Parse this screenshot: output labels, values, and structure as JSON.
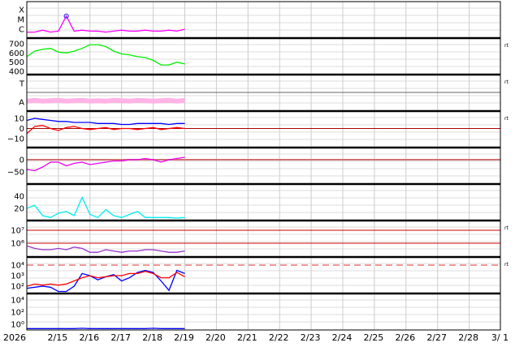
{
  "chart_data": {
    "type": "line",
    "year_label": "2026",
    "x_tick_labels": [
      "2/15",
      "2/16",
      "2/17",
      "2/18",
      "2/19",
      "2/20",
      "2/21",
      "2/22",
      "2/23",
      "2/24",
      "2/25",
      "2/26",
      "2/27",
      "2/28",
      "3/ 1"
    ],
    "x_range": [
      "2026-02-14",
      "2026-03-01 23:00"
    ],
    "grid": true,
    "times": [
      "2/14 00",
      "2/14 06",
      "2/14 12",
      "2/14 18",
      "2/15 00",
      "2/15 06",
      "2/15 12",
      "2/15 18",
      "2/16 00",
      "2/16 06",
      "2/16 12",
      "2/16 18",
      "2/17 00",
      "2/17 06",
      "2/17 12",
      "2/17 18",
      "2/18 00",
      "2/18 06",
      "2/18 12",
      "2/18 18",
      "2/19 00"
    ],
    "panels": [
      {
        "id": "xray",
        "scale": "log",
        "ticks": [
          {
            "label": "X",
            "value": -4
          },
          {
            "label": "M",
            "value": -5
          },
          {
            "label": "C",
            "value": -6
          }
        ],
        "right_label": "",
        "series": [
          {
            "color": "#ff00ff",
            "values": [
              -6.3,
              -6.3,
              -6.1,
              -6.3,
              -6.2,
              -4.65,
              -6.2,
              -6.1,
              -6.2,
              -6.2,
              -6.3,
              -6.2,
              -6.1,
              -6.2,
              -6.2,
              -6.1,
              -6.2,
              -6.2,
              -6.1,
              -6.2,
              -6.0
            ]
          }
        ],
        "marker": {
          "time_index": 5,
          "color": "#3333ff"
        }
      },
      {
        "id": "solar-wind-speed",
        "ticks": [
          {
            "label": "700",
            "value": 700
          },
          {
            "label": "600",
            "value": 600
          },
          {
            "label": "500",
            "value": 500
          },
          {
            "label": "400",
            "value": 400
          }
        ],
        "right_label": "rt",
        "series": [
          {
            "color": "#00ee00",
            "values": [
              560,
              620,
              640,
              650,
              610,
              600,
              620,
              650,
              690,
              690,
              670,
              620,
              590,
              580,
              560,
              550,
              520,
              470,
              470,
              500,
              480
            ]
          }
        ]
      },
      {
        "id": "imf-polarity",
        "ticks": [
          {
            "label": "T",
            "value": 1
          },
          {
            "label": "A",
            "value": -1
          }
        ],
        "right_label": "rt",
        "series": [
          {
            "color": "#ffb3e6",
            "values": [
              -0.9,
              -0.8,
              -0.9,
              -0.85,
              -0.8,
              -0.9,
              -0.85,
              -0.8,
              -0.9,
              -0.85,
              -0.9,
              -0.8,
              -0.85,
              -0.9,
              -0.8,
              -0.85,
              -0.9,
              -0.85,
              -0.8,
              -0.9,
              -0.8
            ]
          }
        ]
      },
      {
        "id": "imf-bz-bt",
        "ticks": [
          {
            "label": "10",
            "value": 10
          },
          {
            "label": "0",
            "value": 0
          },
          {
            "label": "−10",
            "value": -10
          }
        ],
        "right_label": "rt",
        "ref_lines": [
          {
            "value": 0,
            "color": "#aa0000"
          }
        ],
        "series": [
          {
            "color": "#0000ff",
            "values": [
              8,
              10,
              9,
              8,
              7,
              7,
              6,
              6,
              6,
              5,
              5,
              5,
              4,
              4,
              5,
              5,
              5,
              5,
              4,
              5,
              5
            ]
          },
          {
            "color": "#ff0000",
            "values": [
              -5,
              2,
              3,
              0,
              -2,
              1,
              2,
              0,
              -1,
              0,
              1,
              -1,
              0,
              0,
              -1,
              0,
              1,
              -1,
              0,
              1,
              0
            ]
          }
        ]
      },
      {
        "id": "dst",
        "ticks": [
          {
            "label": "0",
            "value": 0
          },
          {
            "label": "−50",
            "value": -50
          }
        ],
        "right_label": "",
        "ref_lines": [
          {
            "value": 0,
            "color": "#d07070"
          }
        ],
        "series": [
          {
            "color": "#ee00ee",
            "values": [
              -40,
              -45,
              -30,
              -10,
              -10,
              -25,
              -15,
              -10,
              -20,
              -15,
              -10,
              -5,
              -5,
              0,
              0,
              5,
              0,
              -10,
              0,
              5,
              10
            ]
          }
        ]
      },
      {
        "id": "density",
        "ticks": [
          {
            "label": "40",
            "value": 40
          },
          {
            "label": "20",
            "value": 20
          }
        ],
        "right_label": "",
        "series": [
          {
            "color": "#00eeee",
            "values": [
              20,
              25,
              8,
              5,
              12,
              15,
              8,
              38,
              10,
              5,
              18,
              8,
              5,
              10,
              15,
              5,
              5,
              5,
              5,
              4,
              5
            ]
          }
        ]
      },
      {
        "id": "electron-flux",
        "scale": "log",
        "ticks": [
          {
            "label": "10⁷",
            "value": 7
          },
          {
            "label": "10⁶",
            "value": 6
          }
        ],
        "right_label": "rt",
        "ref_lines": [
          {
            "value": 7,
            "color": "#cc0000"
          },
          {
            "value": 6,
            "color": "#cc0000"
          }
        ],
        "series": [
          {
            "color": "#9933cc",
            "values": [
              5.8,
              5.6,
              5.5,
              5.5,
              5.6,
              5.5,
              5.7,
              5.6,
              5.3,
              5.3,
              5.5,
              5.4,
              5.3,
              5.4,
              5.4,
              5.5,
              5.5,
              5.4,
              5.3,
              5.3,
              5.4
            ]
          }
        ]
      },
      {
        "id": "proton-flux",
        "scale": "log",
        "ticks": [
          {
            "label": "10⁴",
            "value": 4
          },
          {
            "label": "10³",
            "value": 3
          },
          {
            "label": "10²",
            "value": 2
          }
        ],
        "right_label": "rt",
        "ref_lines": [
          {
            "value": 4,
            "color": "#dd3333",
            "dashed": true
          }
        ],
        "series": [
          {
            "color": "#0000ff",
            "values": [
              1.8,
              1.9,
              2.0,
              1.9,
              1.5,
              1.5,
              2.0,
              3.2,
              3.0,
              2.6,
              2.9,
              3.1,
              2.5,
              2.8,
              3.3,
              3.5,
              3.3,
              2.5,
              1.6,
              3.5,
              3.2
            ]
          },
          {
            "color": "#ff0000",
            "values": [
              2.0,
              2.2,
              2.1,
              2.2,
              2.1,
              2.2,
              2.5,
              2.8,
              3.0,
              2.8,
              2.9,
              3.0,
              3.0,
              3.2,
              3.2,
              3.4,
              3.2,
              2.8,
              2.8,
              3.3,
              2.9
            ]
          }
        ]
      },
      {
        "id": "neutron",
        "scale": "log",
        "ticks": [
          {
            "label": "10⁴",
            "value": 4
          },
          {
            "label": "10²",
            "value": 2
          },
          {
            "label": "10⁰",
            "value": 0
          }
        ],
        "right_label": "",
        "series": [
          {
            "color": "#0000ff",
            "values": [
              -0.7,
              -0.7,
              -0.7,
              -0.7,
              -0.7,
              -0.7,
              -0.7,
              -0.65,
              -0.7,
              -0.7,
              -0.7,
              -0.7,
              -0.7,
              -0.7,
              -0.7,
              -0.7,
              -0.65,
              -0.7,
              -0.7,
              -0.7,
              -0.7
            ]
          }
        ]
      }
    ]
  }
}
